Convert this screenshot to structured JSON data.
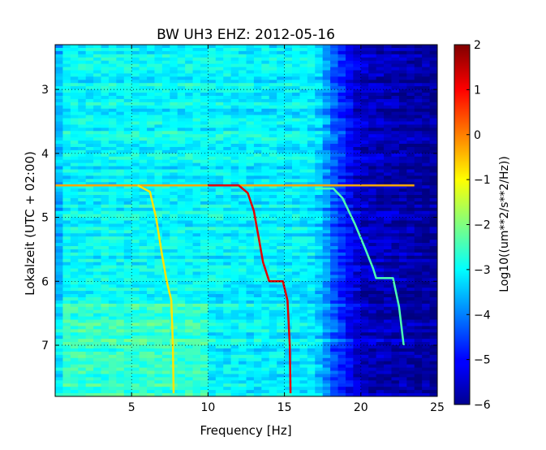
{
  "chart_data": {
    "type": "heatmap",
    "title": "BW UH3 EHZ: 2012-05-16",
    "xlabel": "Frequency [Hz]",
    "ylabel": "Lokalzeit (UTC + 02:00)",
    "xlim": [
      0,
      25
    ],
    "ylim": [
      2.3,
      7.8
    ],
    "y_inverted": true,
    "x_ticks": [
      5,
      10,
      15,
      20,
      25
    ],
    "y_ticks": [
      3,
      4,
      5,
      6,
      7
    ],
    "grid": true,
    "colormap": "jet",
    "colorbar": {
      "label": "Log10((um**2/s**2/Hz))",
      "range": [
        -6,
        2
      ],
      "ticks": [
        2,
        1,
        0,
        -1,
        -2,
        -3,
        -4,
        -5,
        -6
      ]
    },
    "background_value_by_frequency": [
      {
        "freq": 0,
        "value": -3.0
      },
      {
        "freq": 4,
        "value": -3.0
      },
      {
        "freq": 10,
        "value": -3.0
      },
      {
        "freq": 17,
        "value": -3.1
      },
      {
        "freq": 18.5,
        "value": -4.5
      },
      {
        "freq": 20,
        "value": -5.4
      },
      {
        "freq": 25,
        "value": -5.8
      }
    ],
    "series": [
      {
        "value": 1.2,
        "points": [
          [
            10,
            4.5
          ],
          [
            12,
            4.5
          ],
          [
            12.6,
            4.62
          ],
          [
            13.0,
            4.9
          ],
          [
            13.3,
            5.3
          ],
          [
            13.6,
            5.7
          ],
          [
            14.0,
            6.0
          ],
          [
            14.9,
            6.0
          ],
          [
            15.2,
            6.3
          ],
          [
            15.35,
            7.0
          ],
          [
            15.4,
            7.75
          ]
        ]
      },
      {
        "value": -0.8,
        "points": [
          [
            5.4,
            4.5
          ],
          [
            6.2,
            4.6
          ],
          [
            6.6,
            5.0
          ],
          [
            7.0,
            5.6
          ],
          [
            7.3,
            6.0
          ],
          [
            7.6,
            6.3
          ],
          [
            7.7,
            7.0
          ],
          [
            7.75,
            7.75
          ]
        ]
      },
      {
        "value": -2.4,
        "points": [
          [
            17.0,
            4.55
          ],
          [
            18.2,
            4.55
          ],
          [
            18.8,
            4.7
          ],
          [
            19.6,
            5.1
          ],
          [
            20.3,
            5.5
          ],
          [
            20.8,
            5.8
          ],
          [
            21.0,
            5.95
          ],
          [
            22.1,
            5.95
          ],
          [
            22.5,
            6.4
          ],
          [
            22.8,
            7.0
          ]
        ]
      }
    ],
    "horizontal_lines": [
      {
        "y": 4.5,
        "from": 0,
        "to": 23.5,
        "value": -0.3
      }
    ]
  }
}
